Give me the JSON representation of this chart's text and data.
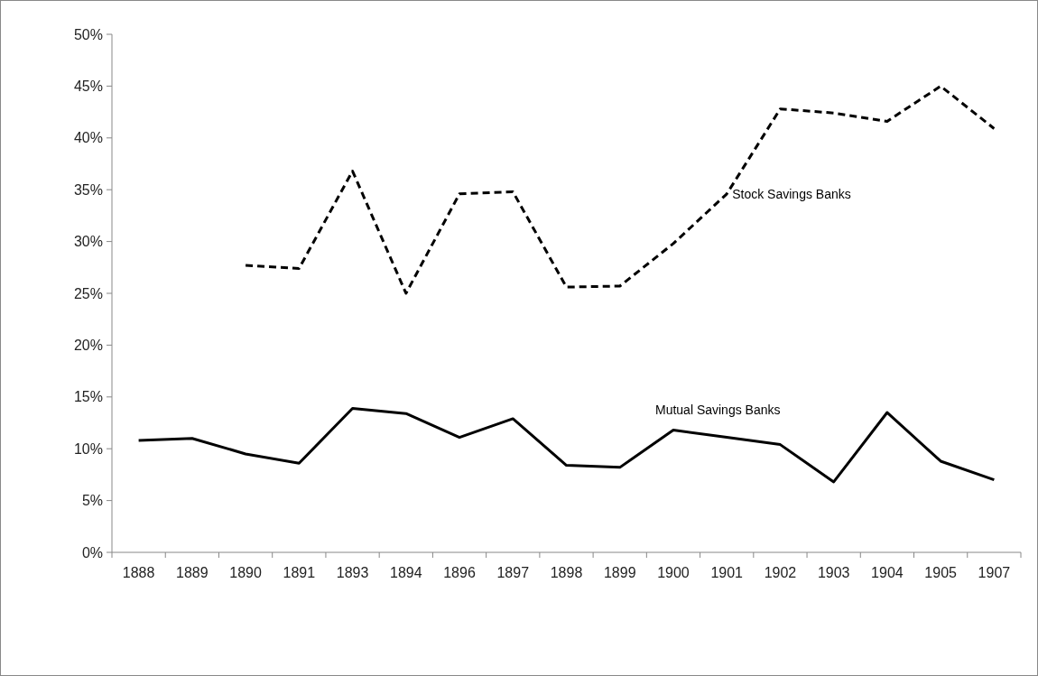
{
  "chart_data": {
    "type": "line",
    "categories": [
      "1888",
      "1889",
      "1890",
      "1891",
      "1893",
      "1894",
      "1896",
      "1897",
      "1898",
      "1899",
      "1900",
      "1901",
      "1902",
      "1903",
      "1904",
      "1905",
      "1907"
    ],
    "series": [
      {
        "name": "Stock Savings Banks",
        "color": "#000000",
        "line_style": "dashed",
        "values": [
          null,
          null,
          27.7,
          27.4,
          36.8,
          25.0,
          34.6,
          34.8,
          25.6,
          25.7,
          29.8,
          34.6,
          42.8,
          42.4,
          41.6,
          45.0,
          40.9
        ]
      },
      {
        "name": "Mutual Savings Banks",
        "color": "#000000",
        "line_style": "solid",
        "values": [
          10.8,
          11.0,
          9.5,
          8.6,
          13.9,
          13.4,
          11.1,
          12.9,
          8.4,
          8.2,
          11.8,
          11.1,
          10.4,
          6.8,
          13.5,
          8.8,
          7.0
        ]
      }
    ],
    "ylim": [
      0,
      50
    ],
    "yticks": [
      {
        "value": 0,
        "label": "0%"
      },
      {
        "value": 5,
        "label": "5%"
      },
      {
        "value": 10,
        "label": "10%"
      },
      {
        "value": 15,
        "label": "15%"
      },
      {
        "value": 20,
        "label": "20%"
      },
      {
        "value": 25,
        "label": "25%"
      },
      {
        "value": 30,
        "label": "30%"
      },
      {
        "value": 35,
        "label": "35%"
      },
      {
        "value": 40,
        "label": "40%"
      },
      {
        "value": 45,
        "label": "45%"
      },
      {
        "value": 50,
        "label": "50%"
      }
    ],
    "grid": false,
    "legend": false,
    "marker": "none"
  }
}
